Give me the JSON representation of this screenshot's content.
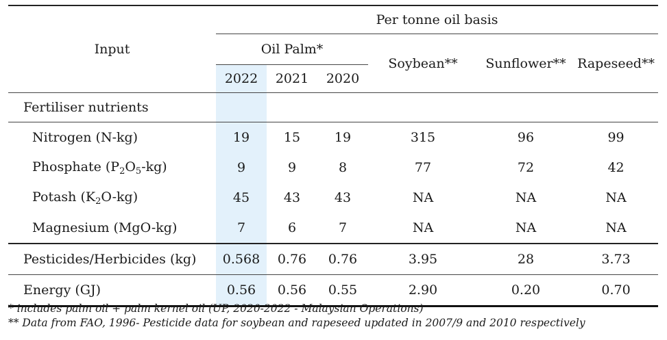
{
  "header": {
    "input": "Input",
    "group": "Per tonne oil basis",
    "oil_palm": "Oil Palm*",
    "years": [
      "2022",
      "2021",
      "2020"
    ],
    "soybean": "Soybean**",
    "sunflower": "Sunflower**",
    "rapeseed": "Rapeseed**"
  },
  "section": {
    "fertiliser": "Fertiliser nutrients"
  },
  "rows": {
    "nitrogen": {
      "label": "Nitrogen (N-kg)",
      "values": [
        "19",
        "15",
        "19",
        "315",
        "96",
        "99"
      ]
    },
    "phosphate": {
      "label_a": "Phosphate (P",
      "sub1": "2",
      "label_b": "O",
      "sub2": "5",
      "label_c": "-kg)",
      "values": [
        "9",
        "9",
        "8",
        "77",
        "72",
        "42"
      ]
    },
    "potash": {
      "label_a": "Potash (K",
      "sub1": "2",
      "label_b": "O-kg)",
      "values": [
        "45",
        "43",
        "43",
        "NA",
        "NA",
        "NA"
      ]
    },
    "magnesium": {
      "label": "Magnesium (MgO-kg)",
      "values": [
        "7",
        "6",
        "7",
        "NA",
        "NA",
        "NA"
      ]
    },
    "pesticides": {
      "label": "Pesticides/Herbicides (kg)",
      "values": [
        "0.568",
        "0.76",
        "0.76",
        "3.95",
        "28",
        "3.73"
      ]
    },
    "energy": {
      "label": "Energy (GJ)",
      "values": [
        "0.56",
        "0.56",
        "0.55",
        "2.90",
        "0.20",
        "0.70"
      ]
    }
  },
  "notes": [
    "*  includes palm oil + palm kernel oil (UP, 2020-2022 - Malaysian Operations)",
    "** Data from FAO, 1996- Pesticide data for soybean and rapeseed updated in 2007/9 and 2010 respectively"
  ],
  "colors": {
    "highlight": "#e3f1fb"
  }
}
